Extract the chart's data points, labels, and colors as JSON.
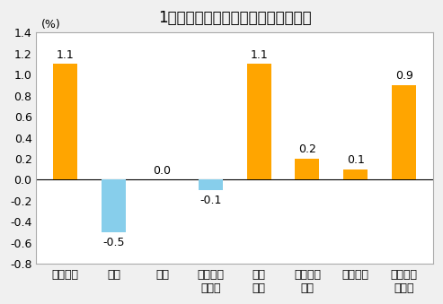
{
  "title": "1月份居民消费价格分类别环比涨跌幅",
  "ylabel": "(%)",
  "categories": [
    "食品烟酒",
    "衣着",
    "居住",
    "生活用品\n及服务",
    "交通\n通信",
    "教育文化\n娱乐",
    "医疗保健",
    "其他用品\n及服务"
  ],
  "values": [
    1.1,
    -0.5,
    0.0,
    -0.1,
    1.1,
    0.2,
    0.1,
    0.9
  ],
  "bar_colors": [
    "#FFA500",
    "#87CEEB",
    "#FFA500",
    "#87CEEB",
    "#FFA500",
    "#FFA500",
    "#FFA500",
    "#FFA500"
  ],
  "ylim": [
    -0.8,
    1.4
  ],
  "yticks": [
    -0.8,
    -0.6,
    -0.4,
    -0.2,
    0.0,
    0.2,
    0.4,
    0.6,
    0.8,
    1.0,
    1.2,
    1.4
  ],
  "background_color": "#f0f0f0",
  "plot_bg_color": "#ffffff",
  "title_fontsize": 12,
  "label_fontsize": 9,
  "tick_fontsize": 9,
  "bar_label_fontsize": 9,
  "bar_width": 0.5
}
